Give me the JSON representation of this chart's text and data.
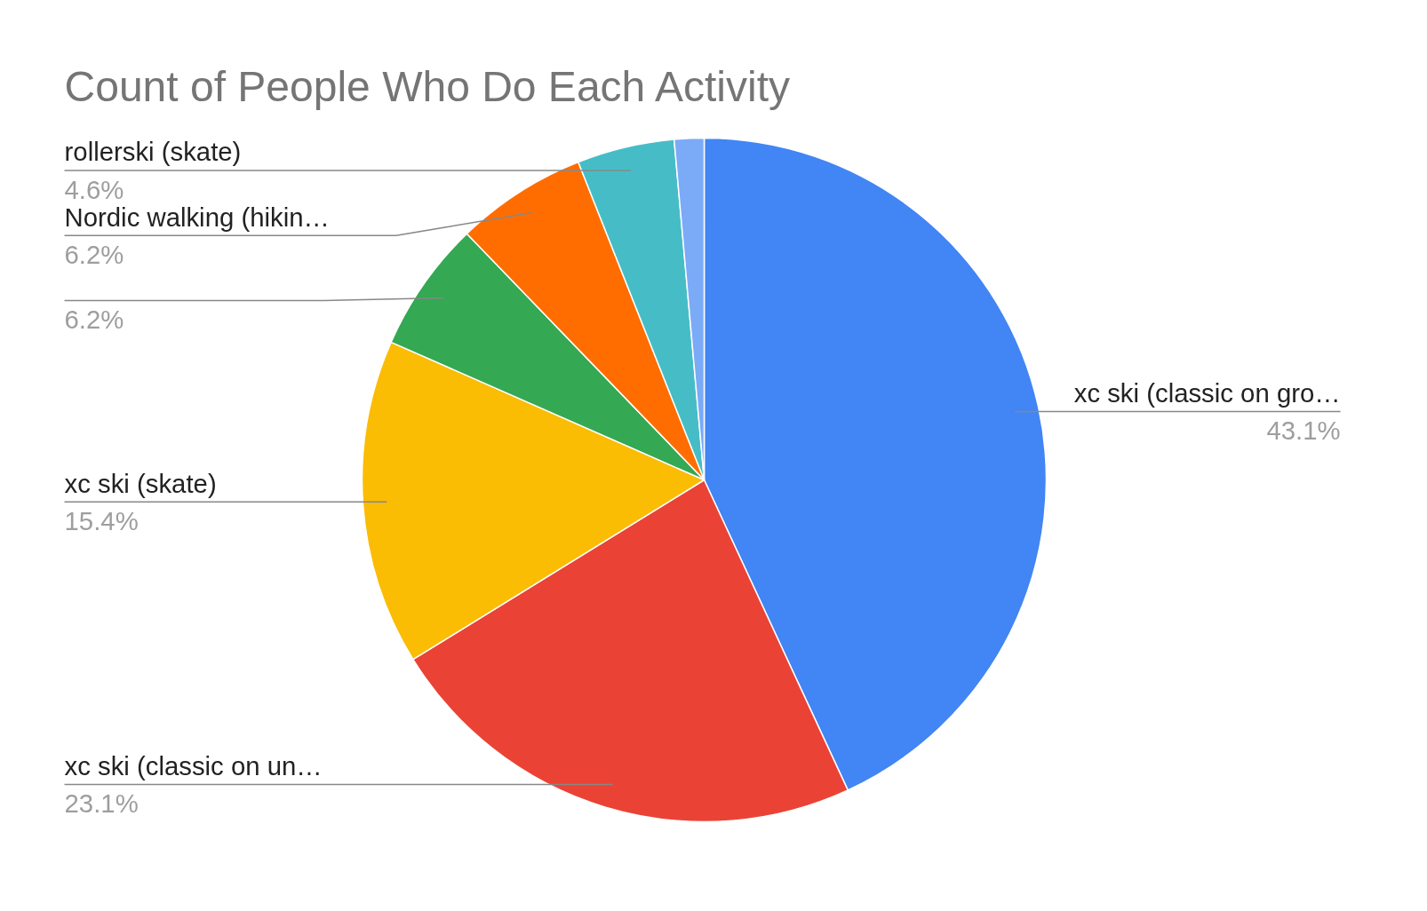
{
  "chart_data": {
    "type": "pie",
    "title": "Count of People Who Do Each Activity",
    "categories": [
      "xc ski (classic on gro…",
      "xc ski (classic on un…",
      "xc ski (skate)",
      null,
      "Nordic walking (hikin…",
      "rollerski (skate)",
      null
    ],
    "values": [
      43.1,
      23.1,
      15.4,
      6.2,
      6.2,
      4.6,
      1.4
    ],
    "colors": [
      "#4285f4",
      "#ea4335",
      "#fbbc04",
      "#34a853",
      "#ff6d01",
      "#46bdc6",
      "#7baaf7"
    ],
    "value_labels": [
      "43.1%",
      "23.1%",
      "15.4%",
      "6.2%",
      "6.2%",
      "4.6%",
      null
    ]
  }
}
